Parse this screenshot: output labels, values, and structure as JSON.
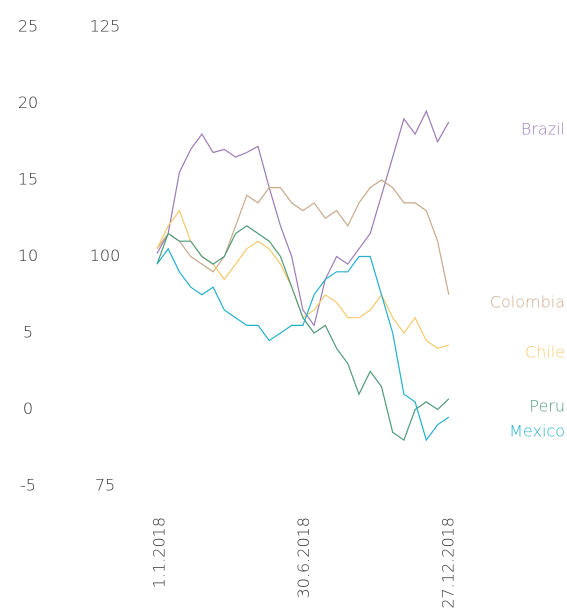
{
  "chart_data": {
    "type": "line",
    "x": [
      "2017-12-28",
      "2018-01-11",
      "2018-01-25",
      "2018-02-08",
      "2018-02-22",
      "2018-03-08",
      "2018-03-22",
      "2018-04-05",
      "2018-04-19",
      "2018-05-03",
      "2018-05-17",
      "2018-05-31",
      "2018-06-14",
      "2018-06-28",
      "2018-07-12",
      "2018-07-26",
      "2018-08-09",
      "2018-08-23",
      "2018-09-06",
      "2018-09-20",
      "2018-10-04",
      "2018-10-18",
      "2018-11-01",
      "2018-11-15",
      "2018-11-29",
      "2018-12-13",
      "2018-12-27"
    ],
    "series": [
      {
        "name": "Brazil",
        "color": "#9b7bb8",
        "values": [
          10.2,
          11.5,
          15.5,
          17.0,
          18.0,
          16.8,
          17.0,
          16.5,
          16.8,
          17.2,
          14.5,
          12.0,
          10.0,
          6.5,
          5.5,
          8.5,
          10.0,
          9.5,
          10.5,
          11.5,
          14.0,
          16.5,
          19.0,
          18.0,
          19.5,
          17.5,
          18.8
        ]
      },
      {
        "name": "Colombia",
        "color": "#c9a98a",
        "values": [
          10.5,
          11.5,
          11.0,
          10.0,
          9.5,
          9.0,
          10.0,
          12.0,
          14.0,
          13.5,
          14.5,
          14.5,
          13.5,
          13.0,
          13.5,
          12.5,
          13.0,
          12.0,
          13.5,
          14.5,
          15.0,
          14.5,
          13.5,
          13.5,
          13.0,
          11.0,
          7.5
        ]
      },
      {
        "name": "Chile",
        "color": "#f5c96a",
        "values": [
          10.5,
          12.0,
          13.0,
          11.0,
          10.0,
          9.5,
          8.5,
          9.5,
          10.5,
          11.0,
          10.5,
          9.5,
          8.0,
          6.0,
          6.5,
          7.5,
          7.0,
          6.0,
          6.0,
          6.5,
          7.5,
          6.0,
          5.0,
          6.0,
          4.5,
          4.0,
          4.2
        ]
      },
      {
        "name": "Peru",
        "color": "#4f9a78",
        "values": [
          9.5,
          11.5,
          11.0,
          11.0,
          10.0,
          9.5,
          10.0,
          11.5,
          12.0,
          11.5,
          11.0,
          10.0,
          8.0,
          6.0,
          5.0,
          5.5,
          4.0,
          3.0,
          1.0,
          2.5,
          1.5,
          -1.5,
          -2.0,
          0.0,
          0.5,
          0.0,
          0.7
        ]
      },
      {
        "name": "Mexico",
        "color": "#22b0cc",
        "values": [
          9.5,
          10.5,
          9.0,
          8.0,
          7.5,
          8.0,
          6.5,
          6.0,
          5.5,
          5.5,
          4.5,
          5.0,
          5.5,
          5.5,
          7.5,
          8.5,
          9.0,
          9.0,
          10.0,
          10.0,
          7.5,
          5.0,
          1.0,
          0.5,
          -2.0,
          -1.0,
          -0.5
        ]
      }
    ],
    "xlim": [
      "2017-12-28",
      "2018-12-31"
    ],
    "xticks": [
      {
        "value": "2018-01-01",
        "label": "1.1.2018"
      },
      {
        "value": "2018-06-30",
        "label": "30.6.2018"
      },
      {
        "value": "2018-12-27",
        "label": "27.12.2018"
      }
    ],
    "ylim": [
      -5,
      25
    ],
    "yticks": [
      -5,
      0,
      5,
      10,
      15,
      20,
      25
    ],
    "y2lim": [
      75,
      125
    ],
    "y2ticks": [
      75,
      100,
      125
    ]
  }
}
